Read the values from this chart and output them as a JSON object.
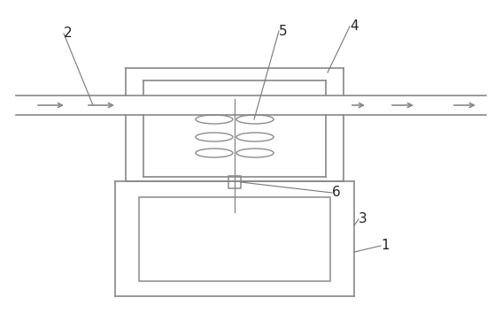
{
  "bg_color": "#ffffff",
  "line_color": "#888888",
  "line_width": 1.2,
  "label_fontsize": 11,
  "fig_width": 5.67,
  "fig_height": 3.54,
  "dpi": 100
}
